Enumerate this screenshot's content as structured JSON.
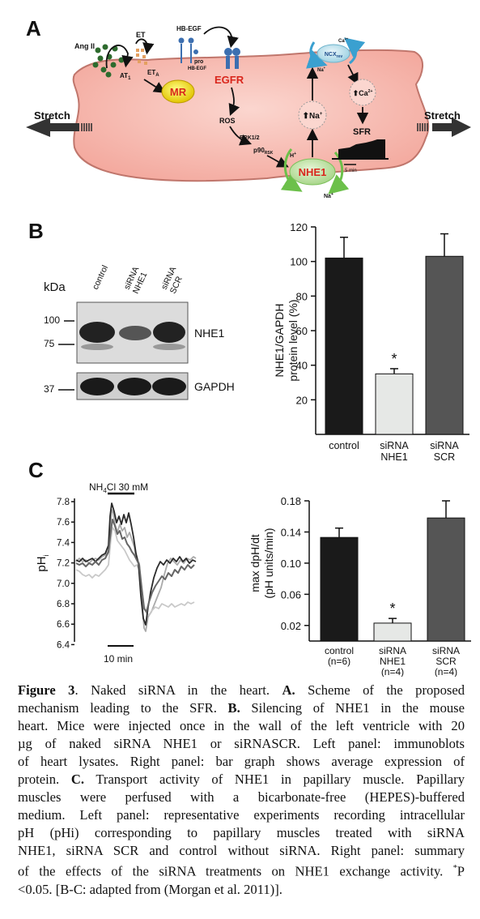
{
  "panelA": {
    "letter": "A",
    "labels": {
      "angii": "Ang II",
      "et": "ET",
      "hbegf": "HB-EGF",
      "at1": "AT",
      "at1_sub": "1",
      "eta": "ET",
      "eta_sub": "A",
      "pro": "pro",
      "prohbegf": "HB-EGF",
      "mr": "MR",
      "egfr": "EGFR",
      "ros": "ROS",
      "erk": "ERK1/2",
      "p90": "p90",
      "p90_sub": "RSK",
      "h": "H",
      "h_sup": "+",
      "nhe1": "NHE1",
      "na_out": "Na",
      "na_out_sup": "+",
      "na_up": "Na",
      "na_up_sup": "+",
      "ncx": "NCX",
      "ncx_sub": "rev",
      "ca_out": "Ca",
      "ca_out_sup": "2+",
      "na_ncx": "Na",
      "na_ncx_sup": "+",
      "ca_up": "Ca",
      "ca_up_sup": "2+",
      "sfr": "SFR",
      "scale": "5 min",
      "stretch_left": "Stretch",
      "stretch_right": "Stretch"
    }
  },
  "panelB": {
    "letter": "B",
    "blot": {
      "kda": "kDa",
      "lanes": [
        "control",
        "siRNA NHE1",
        "siRNA SCR"
      ],
      "markers": [
        "100",
        "75",
        "37"
      ],
      "band_top": "NHE1",
      "band_bottom": "GAPDH"
    },
    "chart_data": {
      "type": "bar",
      "categories": [
        "control",
        "siRNA NHE1",
        "siRNA SCR"
      ],
      "values": [
        102,
        35,
        103
      ],
      "errors": [
        12,
        3,
        13
      ],
      "colors": [
        "#1a1a1a",
        "#e6e8e6",
        "#555555"
      ],
      "ylabel": "NHE1/GAPDH protein level (%)",
      "ylim": [
        0,
        120
      ],
      "yticks": [
        20,
        40,
        60,
        80,
        100,
        120
      ],
      "significance": [
        null,
        "*",
        null
      ]
    }
  },
  "panelC": {
    "letter": "C",
    "trace": {
      "ylabel": "pH",
      "ylabel_sub": "i",
      "treatment": "NH",
      "treatment_sub": "4",
      "treatment_rest": "Cl 30 mM",
      "yticks": [
        "7.8",
        "7.6",
        "7.4",
        "7.2",
        "7.0",
        "6.8",
        "6.6",
        "6.4"
      ],
      "scale": "10 min"
    },
    "chart_data": {
      "type": "bar",
      "categories": [
        "control (n=6)",
        "siRNA NHE1 (n=4)",
        "siRNA SCR (n=4)"
      ],
      "category_lines": [
        [
          "control",
          "(n=6)"
        ],
        [
          "siRNA",
          "NHE1",
          "(n=4)"
        ],
        [
          "siRNA",
          "SCR",
          "(n=4)"
        ]
      ],
      "values": [
        0.133,
        0.023,
        0.158
      ],
      "errors": [
        0.012,
        0.006,
        0.022
      ],
      "colors": [
        "#1a1a1a",
        "#e6e8e6",
        "#555555"
      ],
      "ylabel": "max dpH/dt (pH units/min)",
      "ylim": [
        0,
        0.18
      ],
      "yticks": [
        "0.02",
        "0.06",
        "0.10",
        "0.14",
        "0.18"
      ],
      "significance": [
        null,
        "*",
        null
      ]
    }
  },
  "caption": {
    "lines": [
      "Figure 3. Naked siRNA in the heart. A. Scheme of the proposed",
      "mechanism leading to the SFR. B. Silencing of NHE1 in the mouse",
      "heart. Mice were injected once in the wall of the left ventricle with 20",
      "µg of naked siRNA NHE1 or siRNASCR. Left panel: immunoblots",
      "of heart lysates. Right panel: bar graph shows average expression of",
      "protein. C. Transport activity of NHE1 in papillary muscle. Papillary",
      "muscles were perfused with a bicarbonate-free (HEPES)-buffered",
      "medium. Left panel: representative experiments recording intracellular",
      "pH (pHi) corresponding to papillary muscles treated with siRNA",
      "NHE1, siRNA SCR and control without siRNA. Right panel: summary",
      "of the effects of the siRNA treatments on NHE1 exchange activity. *P",
      "<0.05. [B-C: adapted from (Morgan et al.  2011)]."
    ]
  }
}
